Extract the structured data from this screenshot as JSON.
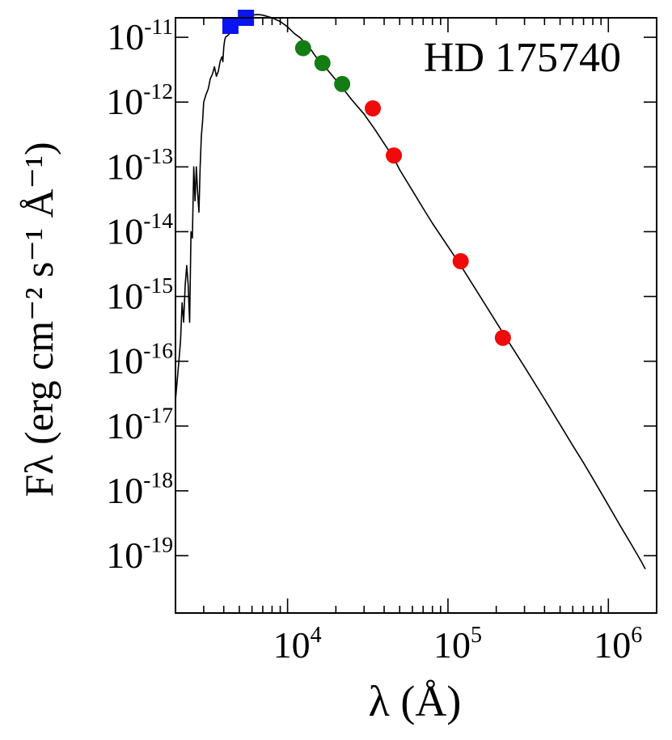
{
  "chart_data": {
    "type": "scatter",
    "title": "HD 175740",
    "xlabel": "λ (Å)",
    "ylabel": "Fλ (erg cm⁻² s⁻¹ Å⁻¹)",
    "x_scale": "log",
    "y_scale": "log",
    "xlim": [
      2000,
      2000000
    ],
    "ylim": [
      1.3e-20,
      2e-11
    ],
    "x_ticks": [
      {
        "value": 10000,
        "mantissa": "10",
        "exp": "4"
      },
      {
        "value": 100000,
        "mantissa": "10",
        "exp": "5"
      },
      {
        "value": 1000000,
        "mantissa": "10",
        "exp": "6"
      }
    ],
    "y_ticks": [
      {
        "value": 1e-11,
        "mantissa": "10",
        "exp": "-11"
      },
      {
        "value": 1e-12,
        "mantissa": "10",
        "exp": "-12"
      },
      {
        "value": 1e-13,
        "mantissa": "10",
        "exp": "-13"
      },
      {
        "value": 1e-14,
        "mantissa": "10",
        "exp": "-14"
      },
      {
        "value": 1e-15,
        "mantissa": "10",
        "exp": "-15"
      },
      {
        "value": 1e-16,
        "mantissa": "10",
        "exp": "-16"
      },
      {
        "value": 1e-17,
        "mantissa": "10",
        "exp": "-17"
      },
      {
        "value": 1e-18,
        "mantissa": "10",
        "exp": "-18"
      },
      {
        "value": 1e-19,
        "mantissa": "10",
        "exp": "-19"
      }
    ],
    "grid": false,
    "series": [
      {
        "marker": "square",
        "color": "#0a14f0",
        "points": [
          {
            "x": 4400,
            "y": 1.5e-11
          },
          {
            "x": 5500,
            "y": 2e-11
          }
        ]
      },
      {
        "marker": "circle",
        "color": "#137d13",
        "points": [
          {
            "x": 12500,
            "y": 6.8e-12
          },
          {
            "x": 16500,
            "y": 4e-12
          },
          {
            "x": 21900,
            "y": 1.9e-12
          }
        ]
      },
      {
        "marker": "circle",
        "color": "#f00a0a",
        "points": [
          {
            "x": 34000,
            "y": 8e-13
          },
          {
            "x": 46000,
            "y": 1.5e-13
          },
          {
            "x": 120000,
            "y": 3.5e-15
          },
          {
            "x": 220000,
            "y": 2.3e-16
          }
        ]
      }
    ],
    "model_curve": {
      "color": "#000000",
      "points": [
        [
          2000,
          2.5e-17
        ],
        [
          2050,
          5e-17
        ],
        [
          2100,
          1e-16
        ],
        [
          2150,
          2e-16
        ],
        [
          2200,
          8e-16
        ],
        [
          2250,
          4e-16
        ],
        [
          2300,
          1.5e-15
        ],
        [
          2350,
          3e-15
        ],
        [
          2400,
          1.5e-15
        ],
        [
          2450,
          4e-16
        ],
        [
          2500,
          1e-14
        ],
        [
          2550,
          8e-15
        ],
        [
          2600,
          1e-13
        ],
        [
          2650,
          3e-14
        ],
        [
          2700,
          1e-13
        ],
        [
          2750,
          4e-14
        ],
        [
          2800,
          2e-14
        ],
        [
          2850,
          1e-13
        ],
        [
          2900,
          3e-13
        ],
        [
          2950,
          5e-13
        ],
        [
          3000,
          1e-12
        ],
        [
          3100,
          1.3e-12
        ],
        [
          3200,
          1.6e-12
        ],
        [
          3300,
          2.3e-12
        ],
        [
          3400,
          2.7e-12
        ],
        [
          3500,
          3.5e-12
        ],
        [
          3600,
          2.5e-12
        ],
        [
          3700,
          3e-12
        ],
        [
          3800,
          4.3e-12
        ],
        [
          3900,
          5e-12
        ],
        [
          3950,
          4.2e-12
        ],
        [
          4000,
          7e-12
        ],
        [
          4050,
          9e-12
        ],
        [
          4100,
          1e-11
        ],
        [
          4200,
          1.05e-11
        ],
        [
          4300,
          1.1e-11
        ],
        [
          4400,
          1.25e-11
        ],
        [
          4600,
          1.35e-11
        ],
        [
          4800,
          1.45e-11
        ],
        [
          5000,
          1.7e-11
        ],
        [
          5200,
          2e-11
        ],
        [
          5500,
          2.15e-11
        ],
        [
          6000,
          2.2e-11
        ],
        [
          6500,
          2.25e-11
        ],
        [
          7000,
          2.2e-11
        ],
        [
          8000,
          2e-11
        ],
        [
          9000,
          1.75e-11
        ],
        [
          10000,
          1.45e-11
        ],
        [
          11000,
          1.15e-11
        ],
        [
          12000,
          9.8e-12
        ],
        [
          13000,
          8e-12
        ],
        [
          14000,
          6.4e-12
        ],
        [
          15000,
          5e-12
        ],
        [
          16000,
          4.3e-12
        ],
        [
          18000,
          3e-12
        ],
        [
          20000,
          2.2e-12
        ],
        [
          22000,
          1.65e-12
        ],
        [
          25000,
          1.1e-12
        ],
        [
          30000,
          6.5e-13
        ],
        [
          35000,
          3.8e-13
        ],
        [
          40000,
          2.3e-13
        ],
        [
          46000,
          1.35e-13
        ],
        [
          50000,
          9e-14
        ],
        [
          60000,
          4.3e-14
        ],
        [
          70000,
          2.3e-14
        ],
        [
          80000,
          1.35e-14
        ],
        [
          100000,
          5.9e-15
        ],
        [
          120000,
          3e-15
        ],
        [
          150000,
          1.25e-15
        ],
        [
          200000,
          4e-16
        ],
        [
          220000,
          2.75e-16
        ],
        [
          300000,
          8.2e-17
        ],
        [
          400000,
          2.6e-17
        ],
        [
          500000,
          1.05e-17
        ],
        [
          600000,
          5e-18
        ],
        [
          700000,
          2.7e-18
        ],
        [
          800000,
          1.55e-18
        ],
        [
          1000000,
          6e-19
        ],
        [
          1200000,
          2.75e-19
        ],
        [
          1400000,
          1.45e-19
        ],
        [
          1600000,
          8.2e-20
        ],
        [
          1700000,
          6.2e-20
        ]
      ]
    }
  }
}
